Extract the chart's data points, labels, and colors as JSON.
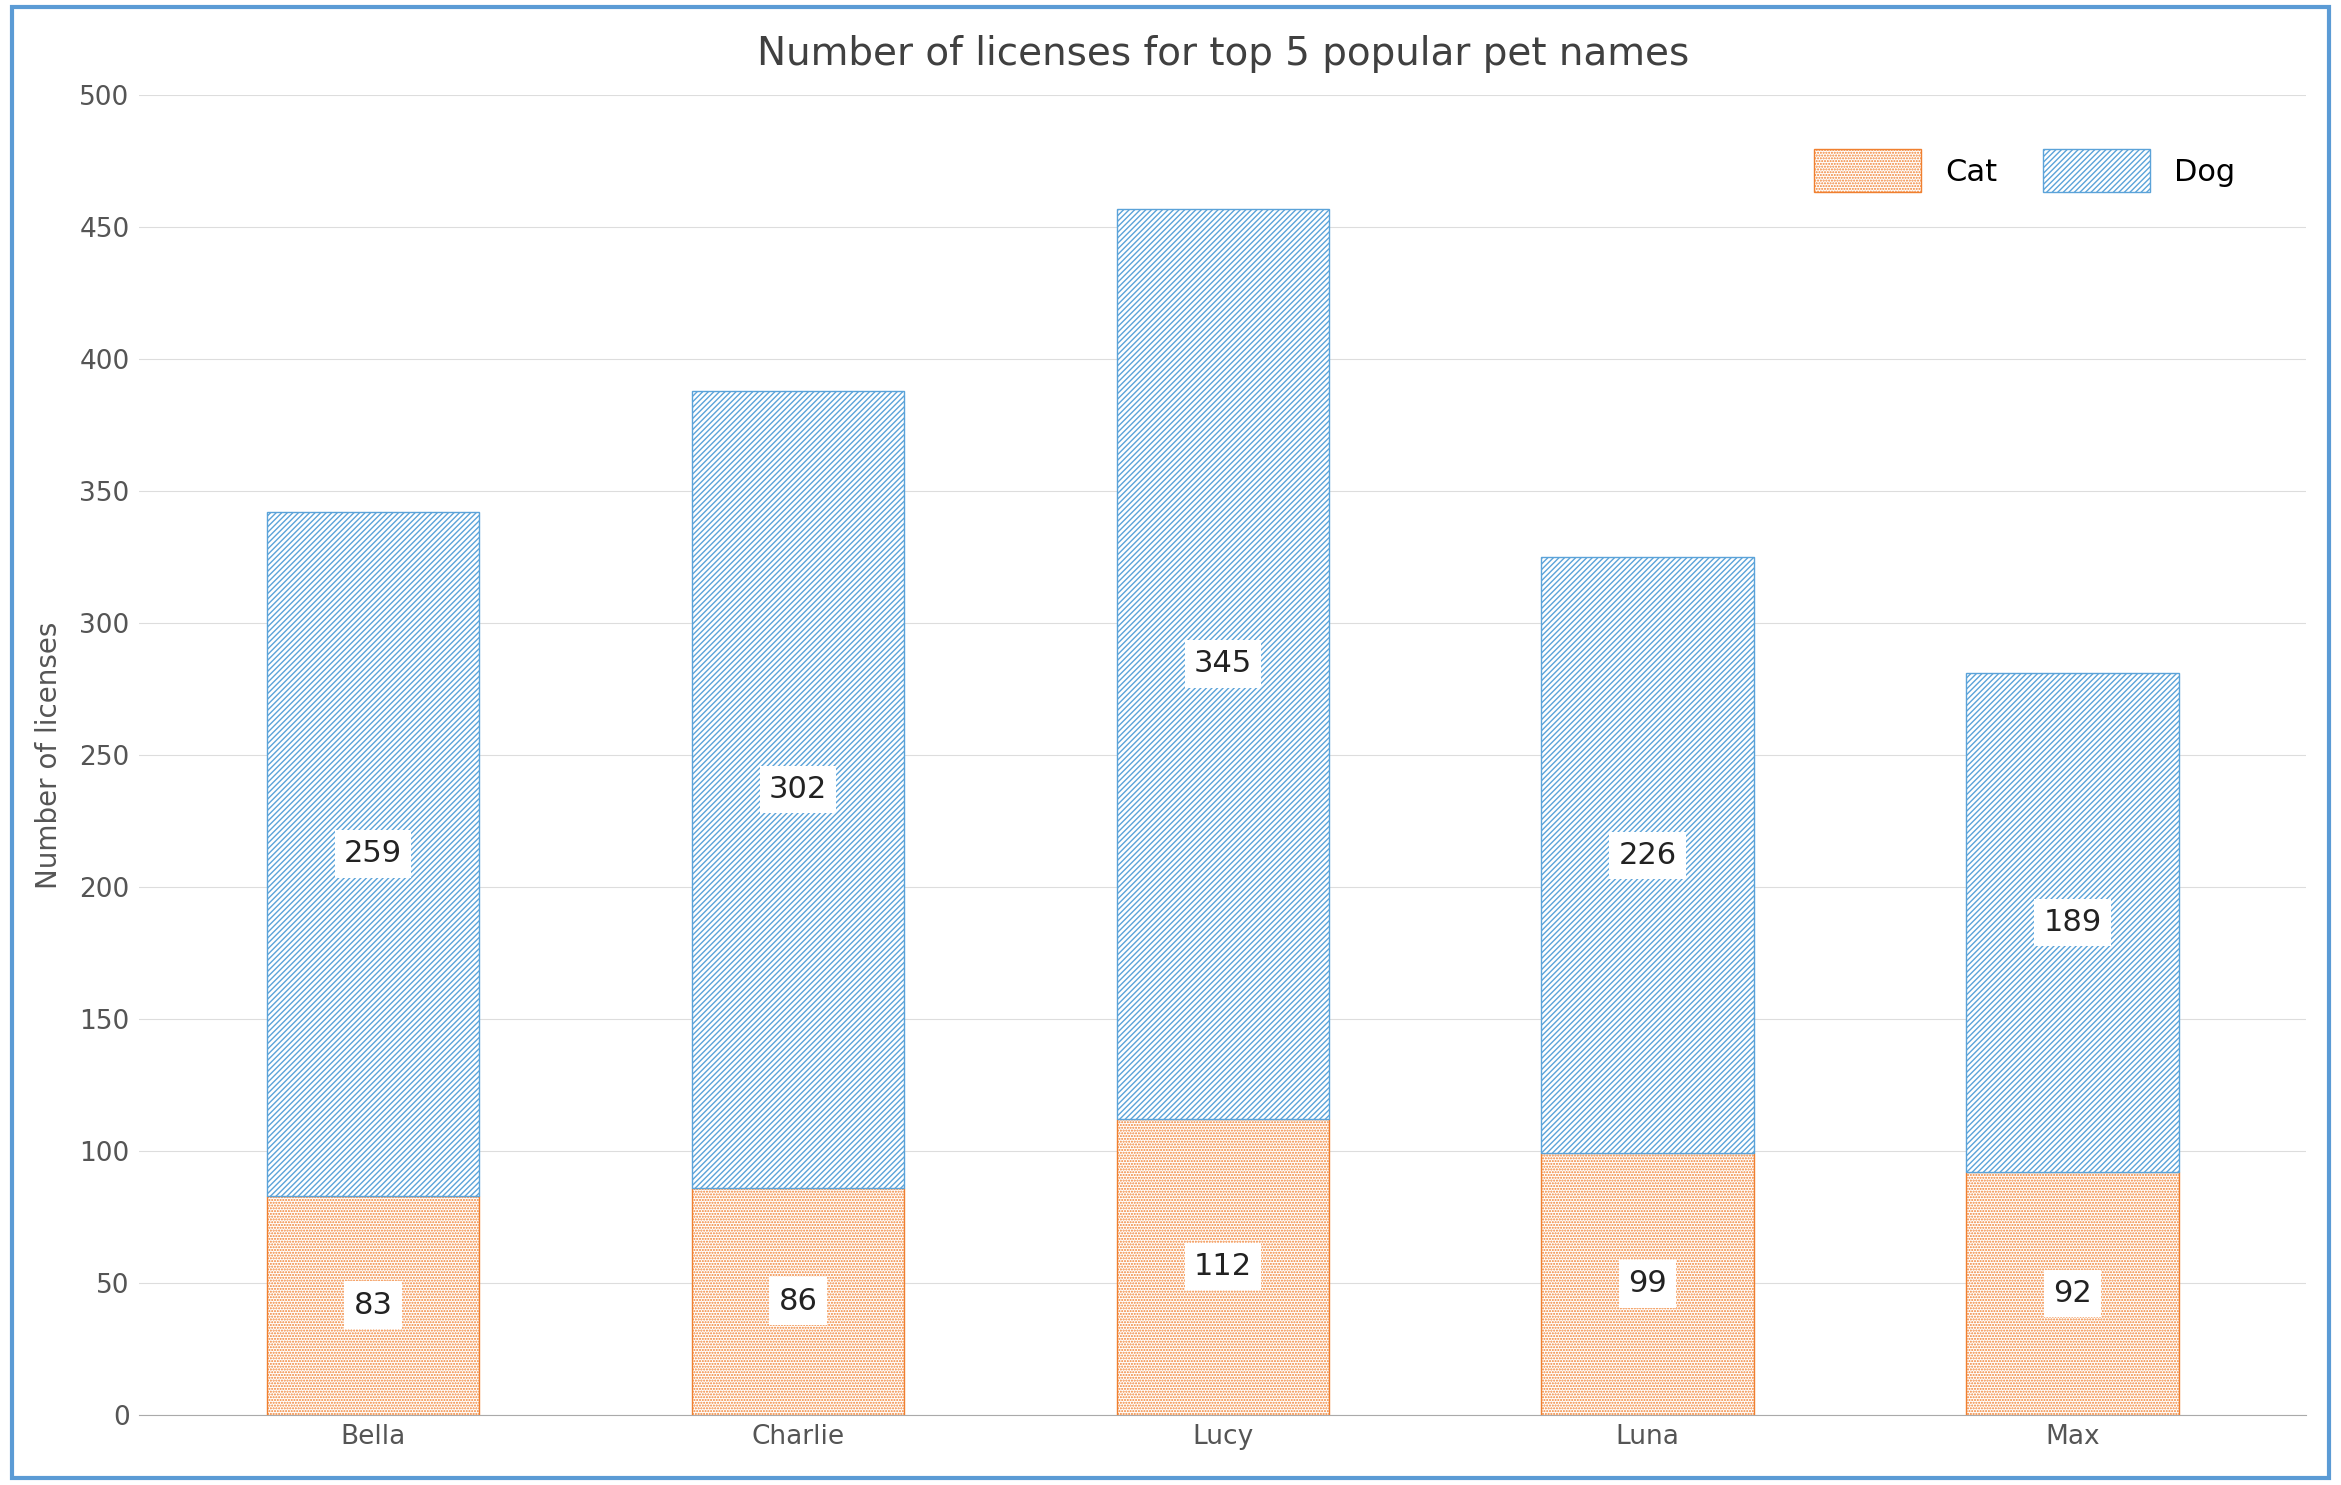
{
  "title": "Number of licenses for top 5 popular pet names",
  "ylabel": "Number of licenses",
  "categories": [
    "Bella",
    "Charlie",
    "Lucy",
    "Luna",
    "Max"
  ],
  "cat_values": [
    83,
    86,
    112,
    99,
    92
  ],
  "dog_values": [
    259,
    302,
    345,
    226,
    189
  ],
  "cat_hatch_color": "#f08030",
  "dog_hatch_color": "#5ba3d9",
  "ylim": [
    0,
    500
  ],
  "yticks": [
    0,
    50,
    100,
    150,
    200,
    250,
    300,
    350,
    400,
    450,
    500
  ],
  "title_fontsize": 28,
  "axis_label_fontsize": 20,
  "tick_fontsize": 19,
  "legend_fontsize": 22,
  "value_fontsize": 22,
  "background_color": "#ffffff",
  "border_color": "#5b9bd5",
  "text_color": "#404040",
  "tick_color": "#555555"
}
